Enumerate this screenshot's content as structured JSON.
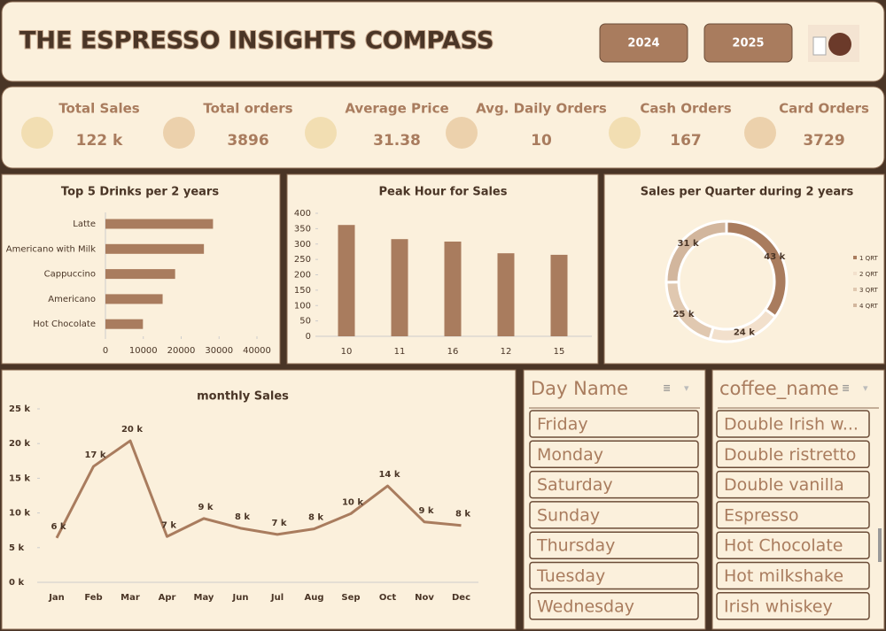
{
  "header": {
    "title": "THE ESPRESSO INSIGHTS COMPASS",
    "buttons": [
      "2024",
      "2025"
    ]
  },
  "kpis": [
    {
      "label": "Total Sales",
      "value": "122 k"
    },
    {
      "label": "Total orders",
      "value": 3896
    },
    {
      "label": "Average Price",
      "value": 31.38
    },
    {
      "label": "Avg. Daily Orders",
      "value": 10
    },
    {
      "label": "Cash Orders",
      "value": 167
    },
    {
      "label": "Card Orders",
      "value": 3729
    }
  ],
  "chart_data": [
    {
      "type": "hbar",
      "title": "Top 5 Drinks per 2 years",
      "categories": [
        "Latte",
        "Americano with Milk",
        "Cappuccino",
        "Americano",
        "Hot Chocolate"
      ],
      "values": [
        28400,
        26000,
        18400,
        15100,
        9900
      ],
      "color": "#a97c5e",
      "xlim": [
        0,
        40000
      ],
      "xticks": [
        0,
        10000,
        20000,
        30000,
        40000
      ]
    },
    {
      "type": "bar",
      "title": "Peak Hour for Sales",
      "categories": [
        "10",
        "11",
        "16",
        "12",
        "15"
      ],
      "values": [
        362,
        316,
        308,
        270,
        265
      ],
      "color": "#a97c5e",
      "ylim": [
        0,
        400
      ],
      "yticks": [
        0,
        50,
        100,
        150,
        200,
        250,
        300,
        350,
        400
      ]
    },
    {
      "type": "pie",
      "title": "Sales per Quarter during  2 years",
      "categories": [
        "1 QRT",
        "2 QRT",
        "3 QRT",
        "4 QRT"
      ],
      "values": [
        43,
        24,
        25,
        31
      ],
      "value_labels": [
        "43 k",
        "24 k",
        "25 k",
        "31 k"
      ],
      "colors": [
        "#a97c5e",
        "#f2e0cc",
        "#e0c8b0",
        "#d2b69d"
      ],
      "legend": "right"
    },
    {
      "type": "line",
      "title": "monthly Sales",
      "categories": [
        "Jan",
        "Feb",
        "Mar",
        "Apr",
        "May",
        "Jun",
        "Jul",
        "Aug",
        "Sep",
        "Oct",
        "Nov",
        "Dec"
      ],
      "values": [
        6.4,
        16.7,
        20.4,
        6.6,
        9.2,
        7.8,
        6.9,
        7.7,
        9.9,
        13.9,
        8.7,
        8.2
      ],
      "value_labels": [
        "6 k",
        "17 k",
        "20 k",
        "7 k",
        "9 k",
        "8 k",
        "7 k",
        "8 k",
        "10 k",
        "14 k",
        "9 k",
        "8 k"
      ],
      "color": "#a97c5e",
      "ylim": [
        0,
        25
      ],
      "yticks": [
        {
          "value": 0,
          "label": "0 k"
        },
        {
          "value": 5,
          "label": "5 k"
        },
        {
          "value": 10,
          "label": "10 k"
        },
        {
          "value": 15,
          "label": "15 k"
        },
        {
          "value": 20,
          "label": "20 k"
        },
        {
          "value": 25,
          "label": "25 k"
        }
      ]
    }
  ],
  "slicers": [
    {
      "title": "Day Name",
      "items": [
        "Friday",
        "Monday",
        "Saturday",
        "Sunday",
        "Thursday",
        "Tuesday",
        "Wednesday"
      ]
    },
    {
      "title": "coffee_name",
      "items": [
        "Double Irish w...",
        "Double ristretto",
        "Double vanilla",
        "Espresso",
        "Hot Chocolate",
        "Hot milkshake",
        "Irish whiskey"
      ]
    }
  ]
}
